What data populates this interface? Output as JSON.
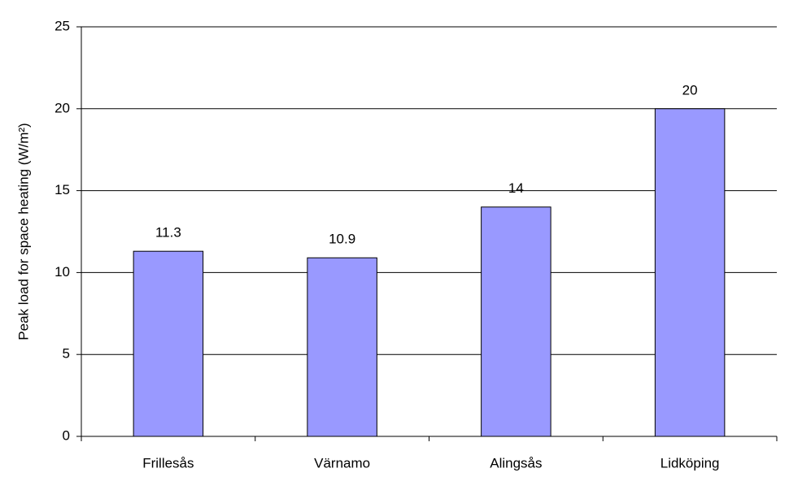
{
  "chart_data": {
    "type": "bar",
    "y_label": "Peak load for space heating (W/m²)",
    "categories": [
      "Frillesås",
      "Värnamo",
      "Alingsås",
      "Lidköping"
    ],
    "values": [
      11.3,
      10.9,
      14,
      20
    ],
    "color": "#9999ff",
    "ylim": [
      0,
      25
    ],
    "yticks": [
      0,
      5,
      10,
      15,
      20,
      25
    ],
    "grid": true
  }
}
